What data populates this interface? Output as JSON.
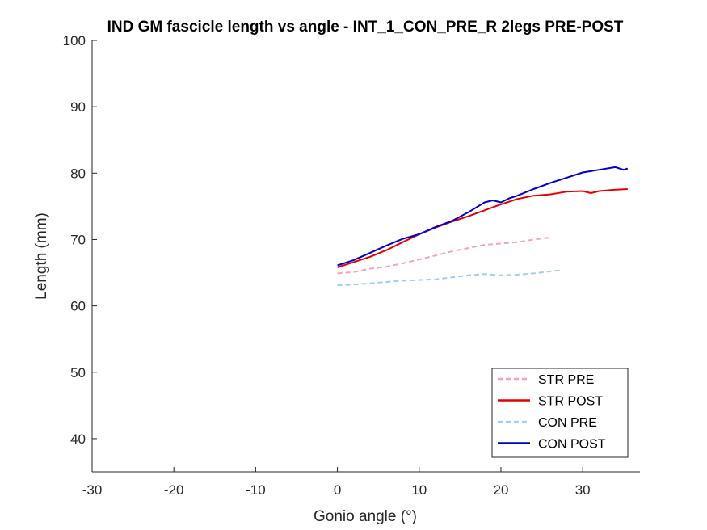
{
  "chart_data": {
    "type": "line",
    "title": "IND GM fascicle length vs angle - INT_1_CON_PRE_R 2legs PRE-POST",
    "xlabel": "Gonio angle (°)",
    "ylabel": "Length (mm)",
    "xlim": [
      -30,
      37
    ],
    "ylim": [
      35,
      100
    ],
    "xticks": [
      -30,
      -20,
      -10,
      0,
      10,
      20,
      30
    ],
    "yticks": [
      40,
      50,
      60,
      70,
      80,
      90,
      100
    ],
    "xtick_labels": [
      "-30",
      "-20",
      "-10",
      "0",
      "10",
      "20",
      "30"
    ],
    "ytick_labels": [
      "40",
      "50",
      "60",
      "70",
      "80",
      "90",
      "100"
    ],
    "grid": false,
    "legend_position": "bottom-right",
    "series": [
      {
        "name": "STR PRE",
        "color": "#f7a1c4",
        "style": "dashed",
        "x": [
          0,
          2,
          4,
          6,
          8,
          10,
          12,
          14,
          16,
          18,
          20,
          22,
          24,
          26
        ],
        "y": [
          64.9,
          65.1,
          65.6,
          65.9,
          66.4,
          67.0,
          67.6,
          68.2,
          68.7,
          69.2,
          69.4,
          69.6,
          70.0,
          70.3
        ]
      },
      {
        "name": "STR POST",
        "color": "#e60000",
        "style": "solid",
        "x": [
          0,
          2,
          4,
          6,
          8,
          10,
          12,
          14,
          16,
          18,
          20,
          22,
          24,
          26,
          28,
          30,
          31,
          32,
          34,
          35.5
        ],
        "y": [
          65.8,
          66.6,
          67.4,
          68.4,
          69.6,
          70.8,
          71.8,
          72.7,
          73.5,
          74.4,
          75.3,
          76.1,
          76.6,
          76.8,
          77.2,
          77.3,
          77.0,
          77.3,
          77.5,
          77.6
        ]
      },
      {
        "name": "CON PRE",
        "color": "#a3ccf2",
        "style": "dashed",
        "x": [
          0,
          2,
          4,
          6,
          8,
          10,
          12,
          14,
          16,
          18,
          20,
          22,
          24,
          26,
          27.5
        ],
        "y": [
          63.1,
          63.2,
          63.4,
          63.6,
          63.8,
          63.9,
          64.0,
          64.3,
          64.6,
          64.8,
          64.6,
          64.7,
          64.9,
          65.2,
          65.4
        ]
      },
      {
        "name": "CON POST",
        "color": "#0000cc",
        "style": "solid",
        "x": [
          0,
          2,
          4,
          6,
          8,
          10,
          12,
          14,
          16,
          18,
          19,
          20,
          21,
          22,
          24,
          26,
          28,
          30,
          32,
          34,
          35,
          35.5
        ],
        "y": [
          66.1,
          66.9,
          68.0,
          69.1,
          70.1,
          70.8,
          71.9,
          72.8,
          74.1,
          75.6,
          75.9,
          75.6,
          76.2,
          76.6,
          77.6,
          78.5,
          79.3,
          80.1,
          80.5,
          80.9,
          80.5,
          80.7
        ]
      }
    ]
  }
}
